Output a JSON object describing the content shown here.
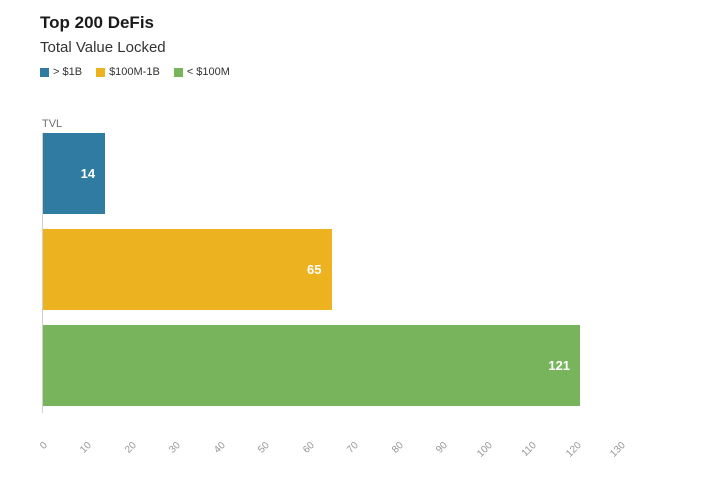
{
  "header": {
    "title": "Top 200 DeFis",
    "subtitle": "Total Value Locked"
  },
  "legend": {
    "items": [
      {
        "label": "> $1B",
        "color": "#2f7ba1"
      },
      {
        "label": "$100M-1B",
        "color": "#edb220"
      },
      {
        "label": "< $100M",
        "color": "#77b45c"
      }
    ]
  },
  "axis": {
    "y_title": "TVL"
  },
  "chart_data": {
    "type": "bar",
    "orientation": "horizontal",
    "title": "Top 200 DeFis",
    "subtitle": "Total Value Locked",
    "ylabel": "TVL",
    "xlabel": "",
    "categories": [
      "> $1B",
      "$100M-1B",
      "< $100M"
    ],
    "values": [
      14,
      65,
      121
    ],
    "colors": [
      "#2f7ba1",
      "#edb220",
      "#77b45c"
    ],
    "xlim": [
      0,
      130
    ],
    "xticks": [
      0,
      10,
      20,
      30,
      40,
      50,
      60,
      70,
      80,
      90,
      100,
      110,
      120,
      130
    ],
    "grid": false,
    "legend_position": "top",
    "value_labels": "inside-end"
  }
}
